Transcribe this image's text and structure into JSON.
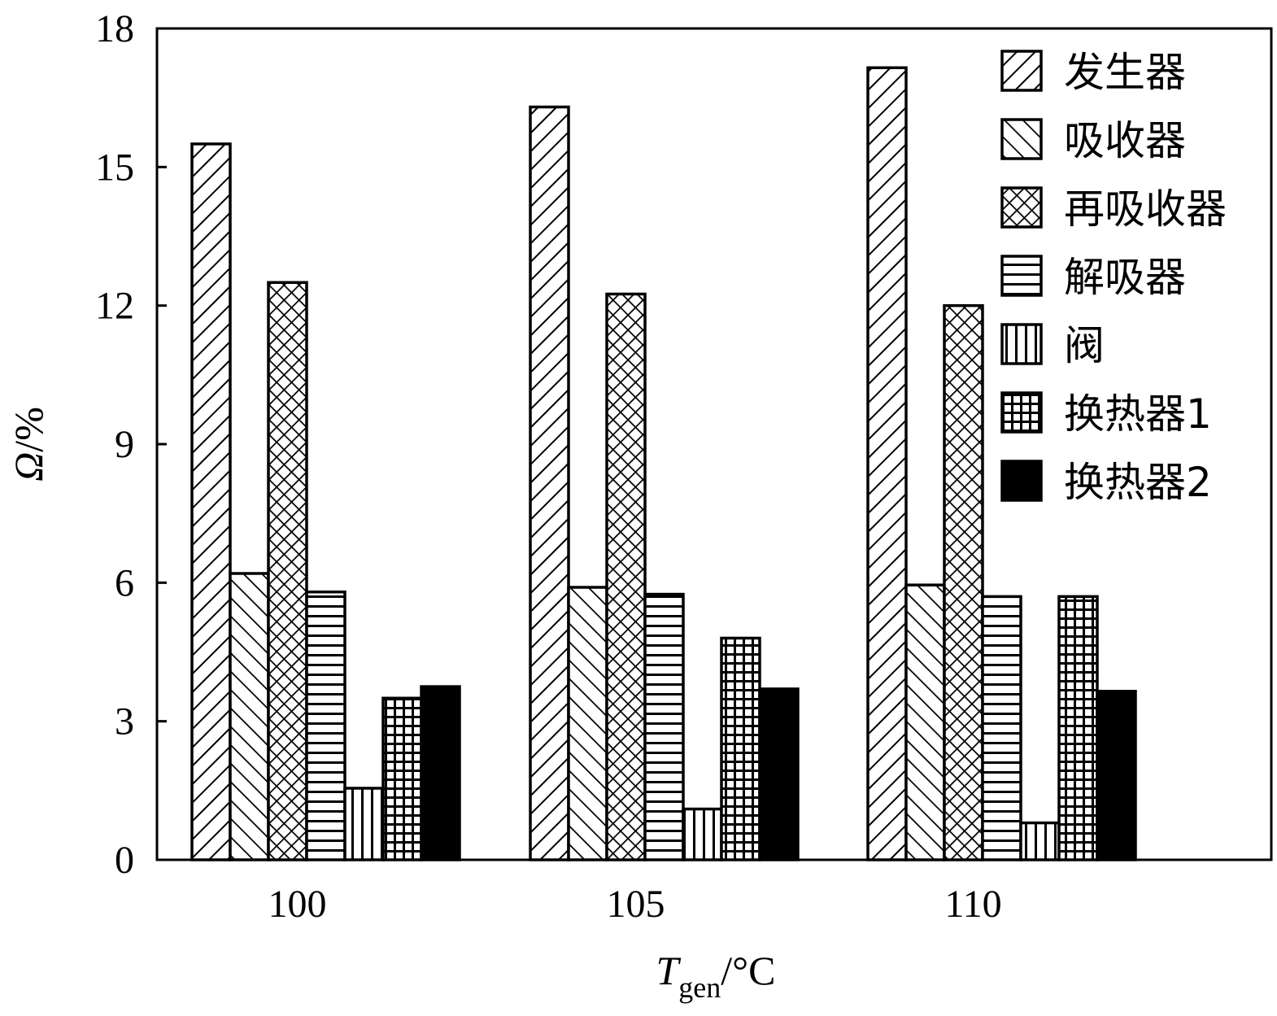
{
  "chart_data": {
    "type": "bar",
    "xlabel": {
      "main": "T",
      "sub": "gen",
      "unit": "/°C"
    },
    "ylabel": {
      "main": "Ω",
      "unit": "/%"
    },
    "categories": [
      "100",
      "105",
      "110"
    ],
    "ylim": [
      0,
      18
    ],
    "yticks": [
      "0",
      "3",
      "6",
      "9",
      "12",
      "15",
      "18"
    ],
    "grid": false,
    "legend_position": "top-right",
    "series": [
      {
        "name": "发生器",
        "pattern": "diag-up",
        "values": [
          15.5,
          16.3,
          17.15
        ]
      },
      {
        "name": "吸收器",
        "pattern": "diag-down",
        "values": [
          6.2,
          5.9,
          5.95
        ]
      },
      {
        "name": "再吸收器",
        "pattern": "crosshatch",
        "values": [
          12.5,
          12.25,
          12.0
        ]
      },
      {
        "name": "解吸器",
        "pattern": "horizontal",
        "values": [
          5.8,
          5.75,
          5.7
        ]
      },
      {
        "name": "阀",
        "pattern": "vertical",
        "values": [
          1.55,
          1.1,
          0.8
        ]
      },
      {
        "name": "换热器1",
        "pattern": "grid",
        "values": [
          3.5,
          4.8,
          5.7
        ]
      },
      {
        "name": "换热器2",
        "pattern": "solid",
        "values": [
          3.75,
          3.7,
          3.65
        ]
      }
    ]
  }
}
